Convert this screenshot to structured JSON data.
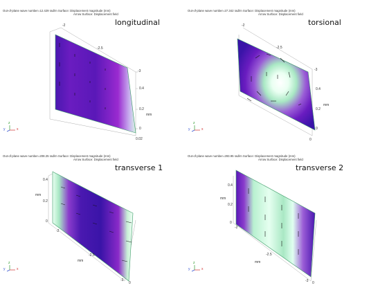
{
  "panels": [
    {
      "id": "longitudinal",
      "header_line1": "Out-of-plane wave number=12.429 rad/m  Surface: Displacement magnitude (mm)",
      "header_line2": "Arrow Surface: Displacement field",
      "title": "longitudinal",
      "ticks": [
        "-2",
        "-2.5",
        "-3",
        "0.4",
        "0.2",
        "mm",
        "0",
        "0.02"
      ],
      "triad": {
        "y": "y",
        "z": "z",
        "x": "x"
      }
    },
    {
      "id": "torsional",
      "header_line1": "Out-of-plane wave number=27.342 rad/m  Surface: Displacement magnitude (mm)",
      "header_line2": "Arrow Surface: Displacement field",
      "title": "torsional",
      "ticks": [
        "-2",
        "-2.5",
        "-3",
        "0.4",
        "0.2",
        "mm",
        "0",
        "0"
      ],
      "triad": {
        "y": "y",
        "z": "z",
        "x": "x"
      }
    },
    {
      "id": "transverse1",
      "header_line1": "Out-of-plane wave number=208.25 rad/m  Surface: Displacement magnitude (mm)",
      "header_line2": "Arrow Surface: Displacement field",
      "title": "transverse 1",
      "ticks": [
        "0.4",
        "0.2",
        "mm",
        "0",
        "-2",
        "-2.5",
        "mm",
        "-3",
        "0"
      ],
      "triad": {
        "y": "y",
        "z": "z",
        "x": "x"
      }
    },
    {
      "id": "transverse2",
      "header_line1": "Out-of-plane wave number=293.95 rad/m  Surface: Displacement magnitude (mm)",
      "header_line2": "Arrow Surface: Displacement field",
      "title": "transverse 2",
      "ticks": [
        "0.4",
        "0.2",
        "mm",
        "0",
        "-2",
        "-2.5",
        "mm",
        "-3",
        "0"
      ],
      "triad": {
        "y": "y",
        "z": "z",
        "x": "x"
      }
    }
  ],
  "colors": {
    "purple_dark": "#3a14a8",
    "purple": "#7a1fc0",
    "magenta": "#a22ad0",
    "mint": "#b8f0d0",
    "white_green": "#eafff2",
    "green_edge": "#2e9b62"
  }
}
